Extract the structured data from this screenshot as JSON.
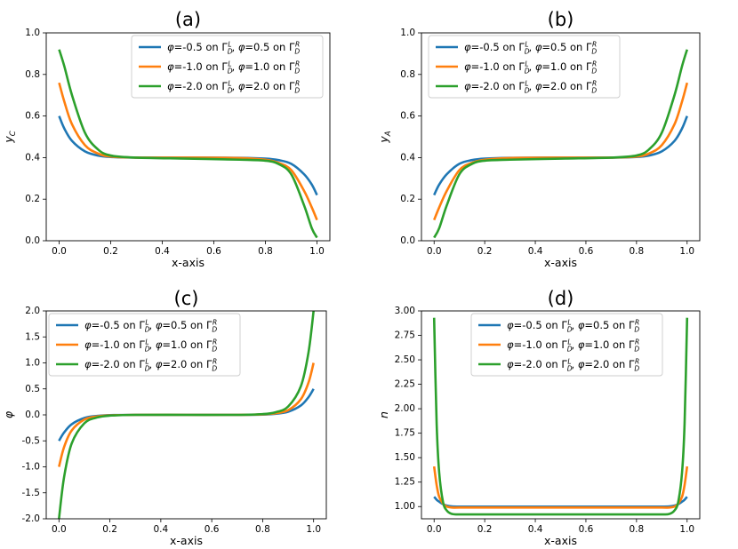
{
  "figure": {
    "colors": {
      "blue": "#1f77b4",
      "orange": "#ff7f0e",
      "green": "#2ca02c"
    }
  },
  "chart_data": [
    {
      "panel": "(a)",
      "title": "(a)",
      "type": "line",
      "xlabel": "x-axis",
      "ylabel": "y_C",
      "ylabel_text": "y",
      "ylabel_sub": "C",
      "ylabel_italic": true,
      "xlim": [
        -0.05,
        1.05
      ],
      "ylim": [
        0,
        1
      ],
      "xticks": [
        0,
        0.2,
        0.4,
        0.6,
        0.8,
        1
      ],
      "xtick_labels": [
        "0.0",
        "0.2",
        "0.4",
        "0.6",
        "0.8",
        "1.0"
      ],
      "yticks": [
        0,
        0.2,
        0.4,
        0.6,
        0.8,
        1
      ],
      "ytick_labels": [
        "0.0",
        "0.2",
        "0.4",
        "0.6",
        "0.8",
        "1.0"
      ],
      "legend_loc": "upper right",
      "x": [
        0,
        0.02,
        0.05,
        0.1,
        0.15,
        0.2,
        0.3,
        0.5,
        0.7,
        0.8,
        0.85,
        0.9,
        0.95,
        0.98,
        1
      ],
      "series": [
        {
          "name": "φ=-0.5 on Γ_D^L, φ=0.5 on Γ_D^R",
          "color": "#1f77b4",
          "values": [
            0.6,
            0.54,
            0.48,
            0.43,
            0.41,
            0.403,
            0.4,
            0.4,
            0.399,
            0.395,
            0.388,
            0.37,
            0.32,
            0.27,
            0.22
          ]
        },
        {
          "name": "φ=-1.0 on Γ_D^L, φ=1.0 on Γ_D^R",
          "color": "#ff7f0e",
          "values": [
            0.76,
            0.67,
            0.56,
            0.46,
            0.42,
            0.405,
            0.4,
            0.4,
            0.398,
            0.39,
            0.375,
            0.34,
            0.24,
            0.16,
            0.1
          ]
        },
        {
          "name": "φ=-2.0 on Γ_D^L, φ=2.0 on Γ_D^R",
          "color": "#2ca02c",
          "values": [
            0.92,
            0.84,
            0.7,
            0.52,
            0.44,
            0.41,
            0.4,
            0.395,
            0.39,
            0.385,
            0.37,
            0.32,
            0.17,
            0.06,
            0.015
          ]
        }
      ]
    },
    {
      "panel": "(b)",
      "title": "(b)",
      "type": "line",
      "xlabel": "x-axis",
      "ylabel": "y_A",
      "ylabel_text": "y",
      "ylabel_sub": "A",
      "ylabel_italic": true,
      "xlim": [
        -0.05,
        1.05
      ],
      "ylim": [
        0,
        1
      ],
      "xticks": [
        0,
        0.2,
        0.4,
        0.6,
        0.8,
        1
      ],
      "xtick_labels": [
        "0.0",
        "0.2",
        "0.4",
        "0.6",
        "0.8",
        "1.0"
      ],
      "yticks": [
        0,
        0.2,
        0.4,
        0.6,
        0.8,
        1
      ],
      "ytick_labels": [
        "0.0",
        "0.2",
        "0.4",
        "0.6",
        "0.8",
        "1.0"
      ],
      "legend_loc": "upper left",
      "x": [
        0,
        0.02,
        0.05,
        0.1,
        0.15,
        0.2,
        0.3,
        0.5,
        0.7,
        0.8,
        0.85,
        0.9,
        0.95,
        0.98,
        1
      ],
      "series": [
        {
          "name": "φ=-0.5 on Γ_D^L, φ=0.5 on Γ_D^R",
          "color": "#1f77b4",
          "values": [
            0.22,
            0.27,
            0.32,
            0.37,
            0.388,
            0.395,
            0.399,
            0.4,
            0.4,
            0.403,
            0.41,
            0.43,
            0.48,
            0.54,
            0.6
          ]
        },
        {
          "name": "φ=-1.0 on Γ_D^L, φ=1.0 on Γ_D^R",
          "color": "#ff7f0e",
          "values": [
            0.1,
            0.16,
            0.24,
            0.34,
            0.375,
            0.39,
            0.398,
            0.4,
            0.4,
            0.405,
            0.42,
            0.46,
            0.56,
            0.67,
            0.76
          ]
        },
        {
          "name": "φ=-2.0 on Γ_D^L, φ=2.0 on Γ_D^R",
          "color": "#2ca02c",
          "values": [
            0.015,
            0.06,
            0.17,
            0.32,
            0.37,
            0.385,
            0.39,
            0.395,
            0.4,
            0.41,
            0.44,
            0.52,
            0.7,
            0.84,
            0.92
          ]
        }
      ]
    },
    {
      "panel": "(c)",
      "title": "(c)",
      "type": "line",
      "xlabel": "x-axis",
      "ylabel": "φ",
      "ylabel_text": "φ",
      "ylabel_sub": "",
      "ylabel_italic": true,
      "xlim": [
        -0.05,
        1.05
      ],
      "ylim": [
        -2,
        2
      ],
      "xticks": [
        0,
        0.2,
        0.4,
        0.6,
        0.8,
        1
      ],
      "xtick_labels": [
        "0.0",
        "0.2",
        "0.4",
        "0.6",
        "0.8",
        "1.0"
      ],
      "yticks": [
        -2,
        -1.5,
        -1,
        -0.5,
        0,
        0.5,
        1,
        1.5,
        2
      ],
      "ytick_labels": [
        "-2.0",
        "-1.5",
        "-1.0",
        "-0.5",
        "0.0",
        "0.5",
        "1.0",
        "1.5",
        "2.0"
      ],
      "legend_loc": "upper left",
      "x": [
        0,
        0.02,
        0.05,
        0.1,
        0.15,
        0.2,
        0.3,
        0.5,
        0.7,
        0.8,
        0.85,
        0.9,
        0.95,
        0.98,
        1
      ],
      "series": [
        {
          "name": "φ=-0.5 on Γ_D^L, φ=0.5 on Γ_D^R",
          "color": "#1f77b4",
          "values": [
            -0.5,
            -0.34,
            -0.18,
            -0.06,
            -0.02,
            -0.005,
            0,
            0,
            0,
            0.005,
            0.02,
            0.06,
            0.18,
            0.34,
            0.5
          ]
        },
        {
          "name": "φ=-1.0 on Γ_D^L, φ=1.0 on Γ_D^R",
          "color": "#ff7f0e",
          "values": [
            -1.0,
            -0.62,
            -0.3,
            -0.09,
            -0.03,
            -0.01,
            0,
            0,
            0,
            0.01,
            0.03,
            0.09,
            0.3,
            0.62,
            1.0
          ]
        },
        {
          "name": "φ=-2.0 on Γ_D^L, φ=2.0 on Γ_D^R",
          "color": "#2ca02c",
          "values": [
            -2.0,
            -1.2,
            -0.55,
            -0.16,
            -0.05,
            -0.015,
            0,
            0,
            0,
            0.015,
            0.05,
            0.16,
            0.55,
            1.2,
            2.0
          ]
        }
      ]
    },
    {
      "panel": "(d)",
      "title": "(d)",
      "type": "line",
      "xlabel": "x-axis",
      "ylabel": "n",
      "ylabel_text": "n",
      "ylabel_sub": "",
      "ylabel_italic": true,
      "xlim": [
        -0.05,
        1.05
      ],
      "ylim": [
        0.875,
        3.0
      ],
      "xticks": [
        0,
        0.2,
        0.4,
        0.6,
        0.8,
        1
      ],
      "xtick_labels": [
        "0.0",
        "0.2",
        "0.4",
        "0.6",
        "0.8",
        "1.0"
      ],
      "yticks": [
        1.0,
        1.25,
        1.5,
        1.75,
        2.0,
        2.25,
        2.5,
        2.75,
        3.0
      ],
      "ytick_labels": [
        "1.00",
        "1.25",
        "1.50",
        "1.75",
        "2.00",
        "2.25",
        "2.50",
        "2.75",
        "3.00"
      ],
      "legend_loc": "upper center",
      "x": [
        0,
        0.01,
        0.02,
        0.035,
        0.05,
        0.07,
        0.1,
        0.2,
        0.5,
        0.8,
        0.9,
        0.93,
        0.95,
        0.965,
        0.98,
        0.99,
        1
      ],
      "series": [
        {
          "name": "φ=-0.5 on Γ_D^L, φ=0.5 on Γ_D^R",
          "color": "#1f77b4",
          "values": [
            1.1,
            1.07,
            1.05,
            1.025,
            1.01,
            1.002,
            1.0,
            1.0,
            1.0,
            1.0,
            1.0,
            1.002,
            1.01,
            1.025,
            1.05,
            1.07,
            1.1
          ]
        },
        {
          "name": "φ=-1.0 on Γ_D^L, φ=1.0 on Γ_D^R",
          "color": "#ff7f0e",
          "values": [
            1.41,
            1.22,
            1.1,
            1.03,
            1.0,
            0.99,
            0.99,
            0.99,
            0.99,
            0.99,
            0.99,
            0.99,
            1.0,
            1.03,
            1.1,
            1.22,
            1.41
          ]
        },
        {
          "name": "φ=-2.0 on Γ_D^L, φ=2.0 on Γ_D^R",
          "color": "#2ca02c",
          "values": [
            2.93,
            1.85,
            1.35,
            1.05,
            0.96,
            0.925,
            0.92,
            0.92,
            0.92,
            0.92,
            0.92,
            0.925,
            0.96,
            1.05,
            1.35,
            1.85,
            2.93
          ]
        }
      ]
    }
  ]
}
